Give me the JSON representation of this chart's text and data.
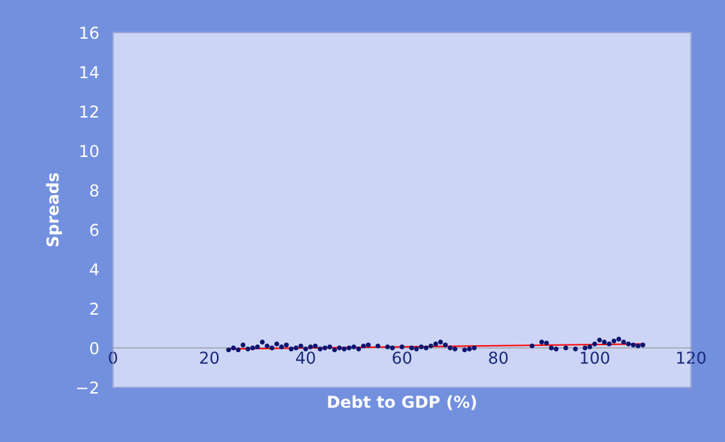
{
  "chart_data": {
    "type": "scatter",
    "xlabel": "Debt to GDP (%)",
    "ylabel": "Spreads",
    "xlim": [
      0,
      120
    ],
    "xticks": [
      0,
      20,
      40,
      60,
      80,
      100,
      120
    ],
    "ylim": [
      -2,
      16
    ],
    "yticks": [
      {
        "value": -2,
        "label": "−2"
      },
      0,
      2,
      4,
      6,
      8,
      10,
      12,
      14,
      16
    ],
    "grid": false,
    "legend": false,
    "series": [
      {
        "color": "#0b1570",
        "marker": "circle",
        "x": [
          24,
          25,
          26,
          27,
          28,
          29,
          30,
          31,
          32,
          33,
          34,
          35,
          36,
          37,
          38,
          39,
          40,
          41,
          42,
          43,
          44,
          45,
          46,
          47,
          48,
          49,
          50,
          51,
          52,
          53,
          55,
          57,
          58,
          60,
          62,
          63,
          64,
          65,
          66,
          67,
          68,
          69,
          70,
          71,
          73,
          74,
          75,
          87,
          89,
          90,
          91,
          92,
          94,
          96,
          98,
          99,
          100,
          101,
          102,
          103,
          104,
          105,
          106,
          107,
          108,
          109,
          110
        ],
        "values": [
          -0.1,
          0.0,
          -0.1,
          0.15,
          -0.05,
          0.0,
          0.05,
          0.3,
          0.1,
          0.0,
          0.2,
          0.05,
          0.15,
          -0.05,
          0.0,
          0.1,
          -0.05,
          0.05,
          0.1,
          -0.05,
          0.0,
          0.05,
          -0.1,
          0.0,
          -0.05,
          0.0,
          0.05,
          -0.05,
          0.1,
          0.15,
          0.1,
          0.05,
          0.0,
          0.05,
          0.0,
          -0.05,
          0.05,
          0.0,
          0.1,
          0.2,
          0.3,
          0.15,
          0.0,
          -0.05,
          -0.1,
          -0.05,
          0.0,
          0.1,
          0.3,
          0.25,
          0.0,
          -0.05,
          0.0,
          -0.05,
          0.0,
          0.05,
          0.2,
          0.4,
          0.3,
          0.2,
          0.35,
          0.45,
          0.3,
          0.2,
          0.15,
          0.1,
          0.15
        ]
      },
      {
        "type": "line",
        "marker": "none",
        "color": "#ff0000",
        "x": [
          24,
          110
        ],
        "values": [
          -0.05,
          0.2
        ]
      }
    ]
  }
}
